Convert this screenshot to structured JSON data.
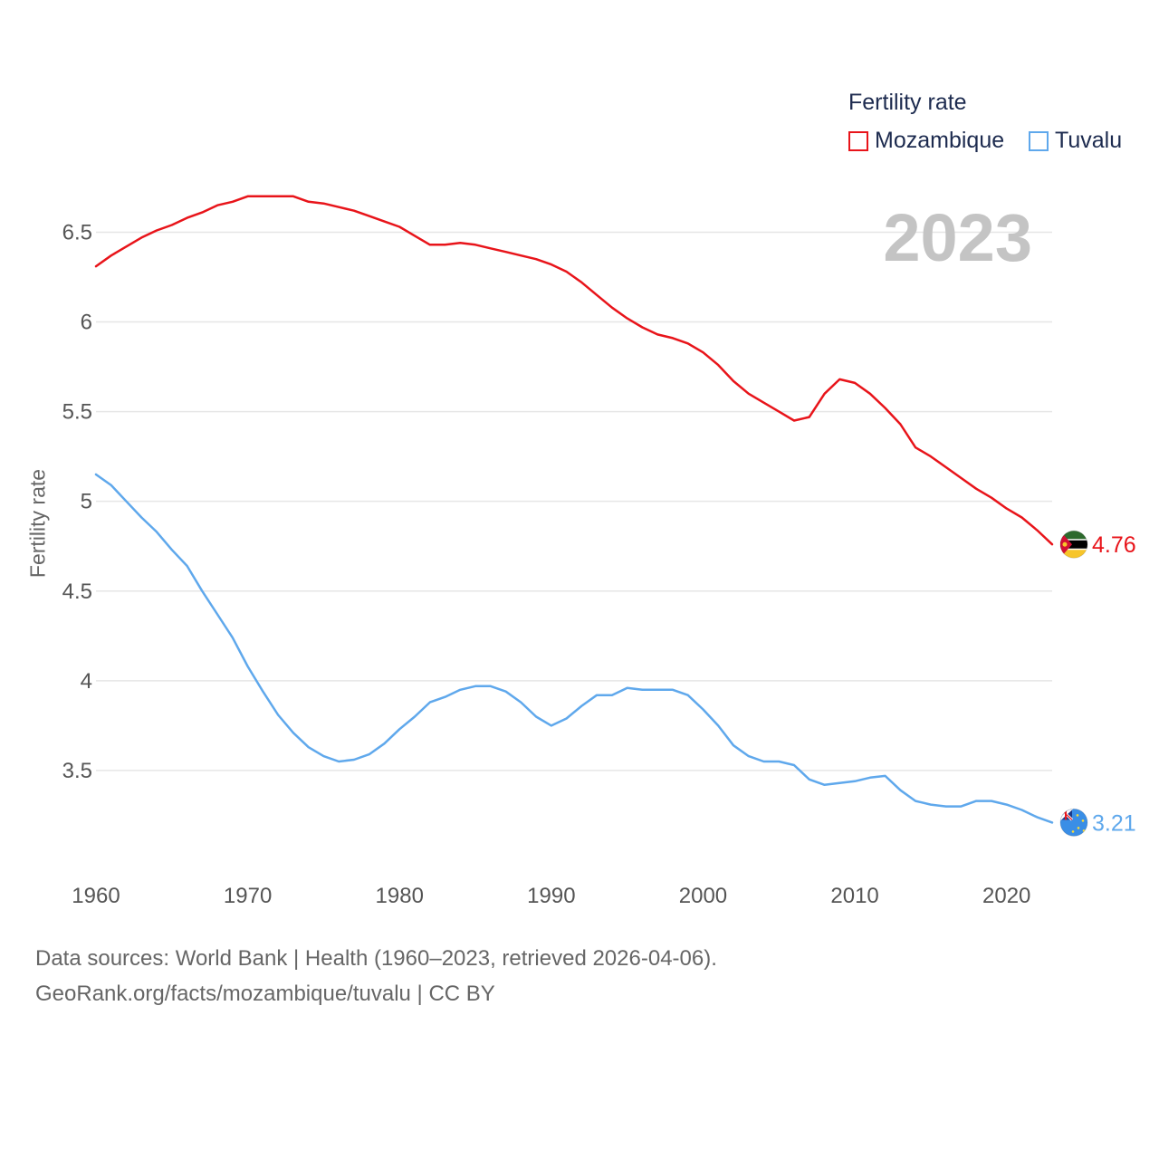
{
  "legend": {
    "title": "Fertility rate",
    "items": [
      {
        "label": "Mozambique",
        "color": "#e8141a"
      },
      {
        "label": "Tuvalu",
        "color": "#5fa8ec"
      }
    ]
  },
  "year_label": "2023",
  "footer": {
    "line1": "Data sources: World Bank | Health (1960–2023, retrieved 2026-04-06).",
    "line2": "GeoRank.org/facts/mozambique/tuvalu | CC BY"
  },
  "chart_data": {
    "type": "line",
    "title": "Fertility rate",
    "xlabel": "",
    "ylabel": "Fertility rate",
    "xlim": [
      1960,
      2023
    ],
    "ylim": [
      3.0,
      6.8
    ],
    "x_ticks": [
      1960,
      1970,
      1980,
      1990,
      2000,
      2010,
      2020
    ],
    "y_ticks": [
      3.5,
      4,
      4.5,
      5,
      5.5,
      6,
      6.5
    ],
    "y_tick_labels": [
      "3.5",
      "4",
      "4.5",
      "5",
      "5.5",
      "6",
      "6.5"
    ],
    "x": [
      1960,
      1961,
      1962,
      1963,
      1964,
      1965,
      1966,
      1967,
      1968,
      1969,
      1970,
      1971,
      1972,
      1973,
      1974,
      1975,
      1976,
      1977,
      1978,
      1979,
      1980,
      1981,
      1982,
      1983,
      1984,
      1985,
      1986,
      1987,
      1988,
      1989,
      1990,
      1991,
      1992,
      1993,
      1994,
      1995,
      1996,
      1997,
      1998,
      1999,
      2000,
      2001,
      2002,
      2003,
      2004,
      2005,
      2006,
      2007,
      2008,
      2009,
      2010,
      2011,
      2012,
      2013,
      2014,
      2015,
      2016,
      2017,
      2018,
      2019,
      2020,
      2021,
      2022,
      2023
    ],
    "series": [
      {
        "name": "Mozambique",
        "color": "#e8141a",
        "end_label": "4.76",
        "flag": "mozambique",
        "values": [
          6.31,
          6.37,
          6.42,
          6.47,
          6.51,
          6.54,
          6.58,
          6.61,
          6.65,
          6.67,
          6.7,
          6.7,
          6.7,
          6.7,
          6.67,
          6.66,
          6.64,
          6.62,
          6.59,
          6.56,
          6.53,
          6.48,
          6.43,
          6.43,
          6.44,
          6.43,
          6.41,
          6.39,
          6.37,
          6.35,
          6.32,
          6.28,
          6.22,
          6.15,
          6.08,
          6.02,
          5.97,
          5.93,
          5.91,
          5.88,
          5.83,
          5.76,
          5.67,
          5.6,
          5.55,
          5.5,
          5.45,
          5.47,
          5.6,
          5.68,
          5.66,
          5.6,
          5.52,
          5.43,
          5.3,
          5.25,
          5.19,
          5.13,
          5.07,
          5.02,
          4.96,
          4.91,
          4.84,
          4.76
        ]
      },
      {
        "name": "Tuvalu",
        "color": "#5fa8ec",
        "end_label": "3.21",
        "flag": "tuvalu",
        "values": [
          5.15,
          5.09,
          5.0,
          4.91,
          4.83,
          4.73,
          4.64,
          4.5,
          4.37,
          4.24,
          4.08,
          3.94,
          3.81,
          3.71,
          3.63,
          3.58,
          3.55,
          3.56,
          3.59,
          3.65,
          3.73,
          3.8,
          3.88,
          3.91,
          3.95,
          3.97,
          3.97,
          3.94,
          3.88,
          3.8,
          3.75,
          3.79,
          3.86,
          3.92,
          3.92,
          3.96,
          3.95,
          3.95,
          3.95,
          3.92,
          3.84,
          3.75,
          3.64,
          3.58,
          3.55,
          3.55,
          3.53,
          3.45,
          3.42,
          3.43,
          3.44,
          3.46,
          3.47,
          3.39,
          3.33,
          3.31,
          3.3,
          3.3,
          3.33,
          3.33,
          3.31,
          3.28,
          3.24,
          3.21
        ]
      }
    ]
  }
}
